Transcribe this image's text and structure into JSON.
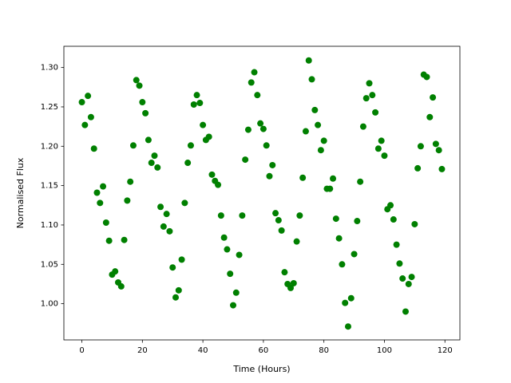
{
  "chart_data": {
    "type": "scatter",
    "xlabel": "Time (Hours)",
    "ylabel": "Normalised Flux",
    "color": "#008000",
    "x": [
      0,
      1,
      2,
      3,
      4,
      5,
      6,
      7,
      8,
      9,
      10,
      11,
      12,
      13,
      14,
      15,
      16,
      17,
      18,
      19,
      20,
      21,
      22,
      23,
      24,
      25,
      26,
      27,
      28,
      29,
      30,
      31,
      32,
      33,
      34,
      35,
      36,
      37,
      38,
      39,
      40,
      41,
      42,
      43,
      44,
      45,
      46,
      47,
      48,
      49,
      50,
      51,
      52,
      53,
      54,
      55,
      56,
      57,
      58,
      59,
      60,
      61,
      62,
      63,
      64,
      65,
      66,
      67,
      68,
      69,
      70,
      71,
      72,
      73,
      74,
      75,
      76,
      77,
      78,
      79,
      80,
      81,
      82,
      83,
      84,
      85,
      86,
      87,
      88,
      89,
      90,
      91,
      92,
      93,
      94,
      95,
      96,
      97,
      98,
      99,
      100,
      101,
      102,
      103,
      104,
      105,
      106,
      107,
      108,
      109,
      110,
      111,
      112,
      113,
      114,
      115,
      116,
      117,
      118,
      119
    ],
    "values": [
      1.256,
      1.227,
      1.264,
      1.237,
      1.197,
      1.141,
      1.128,
      1.149,
      1.103,
      1.08,
      1.037,
      1.041,
      1.027,
      1.022,
      1.081,
      1.131,
      1.155,
      1.201,
      1.284,
      1.277,
      1.256,
      1.242,
      1.208,
      1.179,
      1.188,
      1.173,
      1.123,
      1.098,
      1.114,
      1.092,
      1.046,
      1.008,
      1.017,
      1.056,
      1.128,
      1.179,
      1.201,
      1.253,
      1.265,
      1.255,
      1.227,
      1.208,
      1.212,
      1.164,
      1.156,
      1.151,
      1.112,
      1.084,
      1.069,
      1.038,
      0.998,
      1.014,
      1.062,
      1.112,
      1.183,
      1.221,
      1.281,
      1.294,
      1.265,
      1.229,
      1.222,
      1.201,
      1.162,
      1.176,
      1.115,
      1.106,
      1.093,
      1.04,
      1.025,
      1.02,
      1.026,
      1.079,
      1.112,
      1.16,
      1.219,
      1.309,
      1.285,
      1.246,
      1.227,
      1.195,
      1.207,
      1.146,
      1.146,
      1.159,
      1.108,
      1.083,
      1.05,
      1.001,
      0.971,
      1.007,
      1.063,
      1.105,
      1.155,
      1.225,
      1.261,
      1.28,
      1.265,
      1.243,
      1.197,
      1.207,
      1.188,
      1.12,
      1.125,
      1.107,
      1.075,
      1.051,
      1.032,
      0.99,
      1.025,
      1.034,
      1.101,
      1.172,
      1.2,
      1.291,
      1.288,
      1.237,
      1.262,
      1.203,
      1.195,
      1.171
    ],
    "xlim": [
      -5.95,
      124.95
    ],
    "ylim": [
      0.954,
      1.327
    ],
    "xticks": [
      0,
      20,
      40,
      60,
      80,
      100,
      120
    ],
    "yticks": [
      {
        "value": 1.0,
        "label": "1.00"
      },
      {
        "value": 1.05,
        "label": "1.05"
      },
      {
        "value": 1.1,
        "label": "1.10"
      },
      {
        "value": 1.15,
        "label": "1.15"
      },
      {
        "value": 1.2,
        "label": "1.20"
      },
      {
        "value": 1.25,
        "label": "1.25"
      },
      {
        "value": 1.3,
        "label": "1.30"
      }
    ],
    "grid": false
  }
}
